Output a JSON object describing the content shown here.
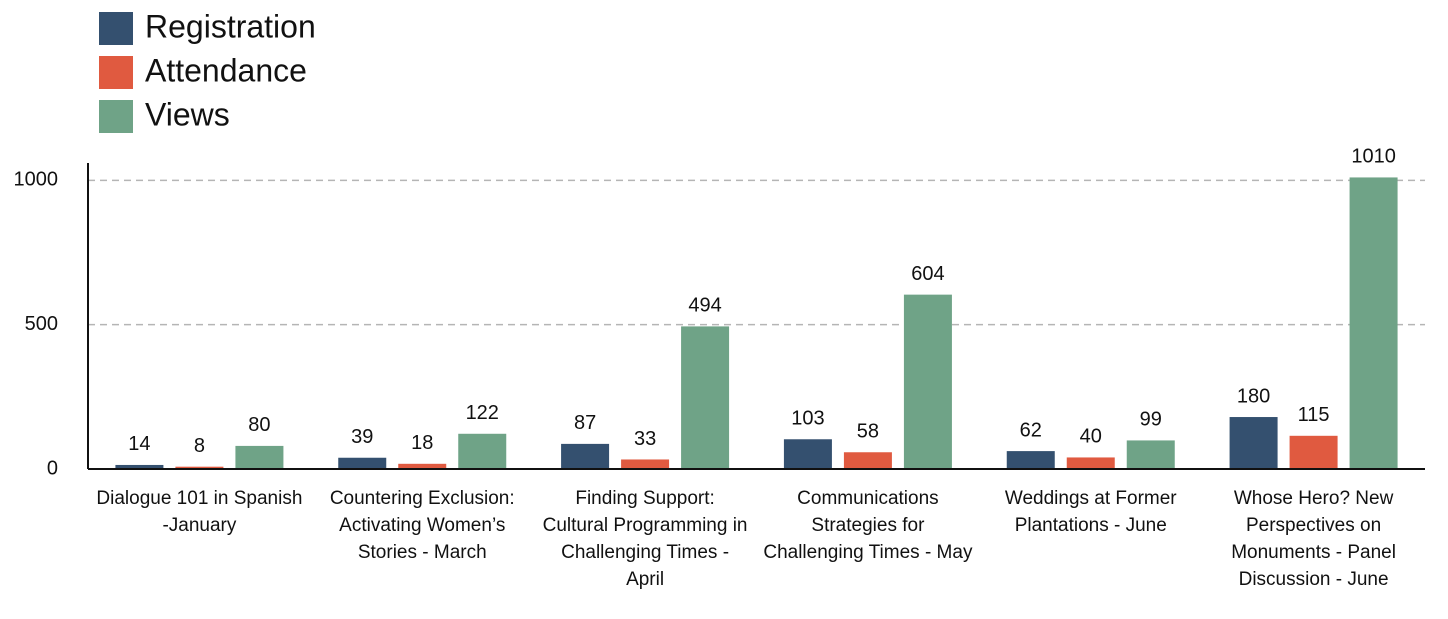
{
  "chart_data": {
    "type": "bar",
    "categories": [
      "Dialogue 101 in Spanish -January",
      "Countering Exclusion: Activating Women’s Stories - March",
      "Finding Support: Cultural Programming in Challenging Times - April",
      "Communications Strategies for Challenging Times - May",
      "Weddings at Former Plantations - June",
      "Whose Hero? New Perspectives on Monuments - Panel Discussion - June"
    ],
    "series": [
      {
        "name": "Registration",
        "color": "#34506f",
        "values": [
          14,
          39,
          87,
          103,
          62,
          180
        ]
      },
      {
        "name": "Attendance",
        "color": "#e05a40",
        "values": [
          8,
          18,
          33,
          58,
          40,
          115
        ]
      },
      {
        "name": "Views",
        "color": "#6fa387",
        "values": [
          80,
          122,
          494,
          604,
          99,
          1010
        ]
      }
    ],
    "ylim": [
      0,
      1060
    ],
    "yticks": [
      0,
      500,
      1000
    ],
    "grid": true,
    "legend": "top-left"
  }
}
